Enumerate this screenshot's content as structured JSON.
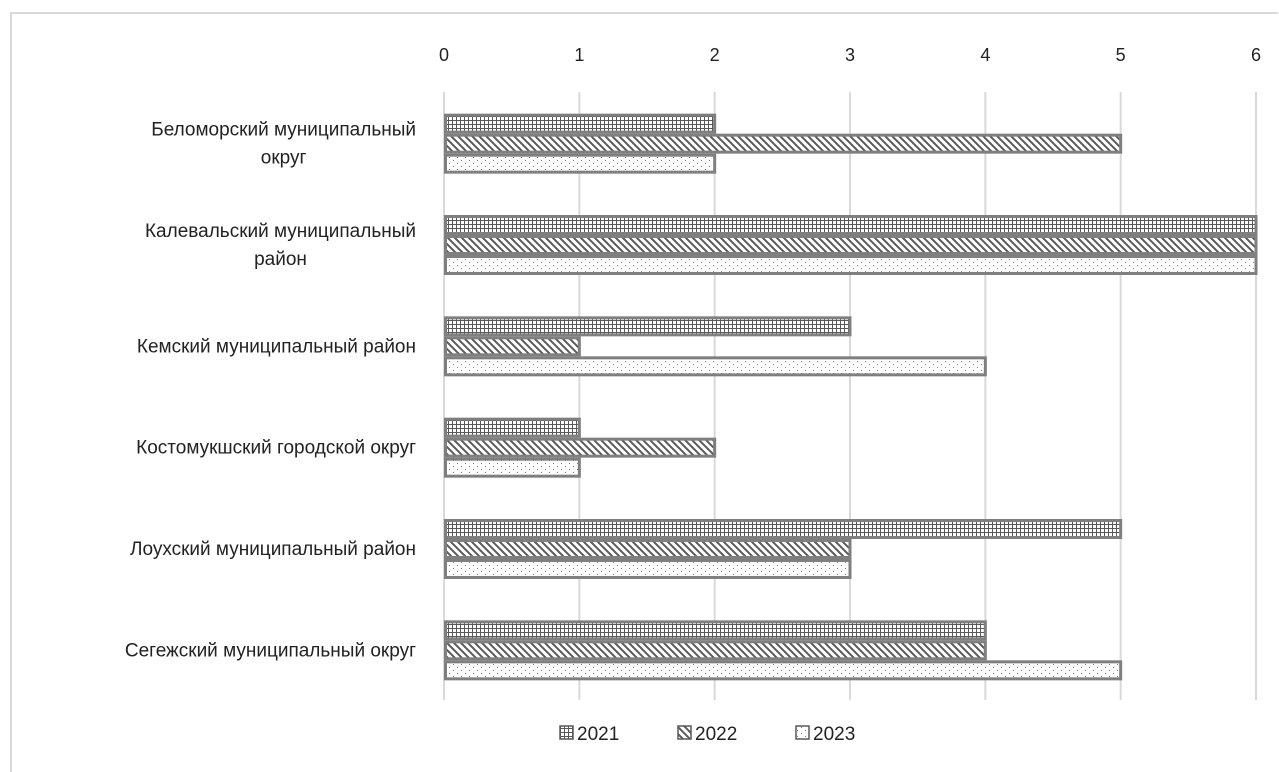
{
  "chart_data": {
    "type": "bar",
    "orientation": "horizontal",
    "title": "",
    "xlabel": "",
    "ylabel": "",
    "xlim": [
      0,
      6
    ],
    "x_ticks": [
      "0",
      "1",
      "2",
      "3",
      "4",
      "5",
      "6"
    ],
    "x_axis_position": "top",
    "grid": true,
    "legend_position": "bottom",
    "categories": [
      [
        "Беломорский муниципальный",
        "округ"
      ],
      [
        "Калевальский муниципальный",
        "район"
      ],
      [
        "Кемский муниципальный район"
      ],
      [
        "Костомукшский городской округ"
      ],
      [
        "Лоухский муниципальный район"
      ],
      [
        "Сегежский муниципальный округ"
      ]
    ],
    "series": [
      {
        "name": "2021",
        "pattern": "grid",
        "values": [
          2,
          6,
          3,
          1,
          5,
          4
        ]
      },
      {
        "name": "2022",
        "pattern": "diagonal",
        "values": [
          5,
          6,
          1,
          2,
          3,
          4
        ]
      },
      {
        "name": "2023",
        "pattern": "dots",
        "values": [
          2,
          6,
          4,
          1,
          3,
          5
        ]
      }
    ],
    "colors": {
      "bar_border": "#7f7f7f",
      "pattern_ink": "#595959",
      "grid": "#d9d9d9",
      "text": "#222222"
    }
  }
}
